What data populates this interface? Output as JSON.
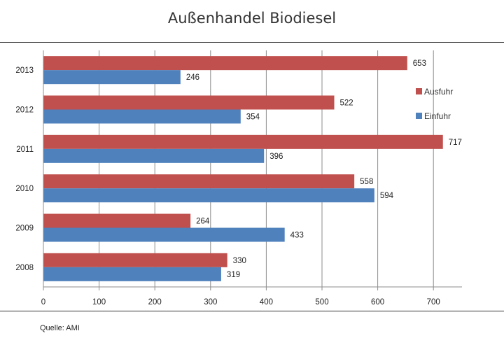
{
  "chart_data": {
    "type": "bar",
    "orientation": "horizontal",
    "title": "Außenhandel Biodiesel",
    "categories": [
      "2008",
      "2009",
      "2010",
      "2011",
      "2012",
      "2013"
    ],
    "series": [
      {
        "name": "Ausfuhr",
        "color": "#c0504d",
        "values": [
          330,
          264,
          558,
          717,
          522,
          653
        ]
      },
      {
        "name": "Einfuhr",
        "color": "#4f81bd",
        "values": [
          319,
          433,
          594,
          396,
          354,
          246
        ]
      }
    ],
    "x_ticks": [
      0,
      100,
      200,
      300,
      400,
      500,
      600,
      700
    ],
    "xlim": [
      0,
      750
    ],
    "grid": true,
    "legend": {
      "position": "right",
      "entries": [
        "Ausfuhr",
        "Einfuhr"
      ]
    },
    "xlabel": "",
    "ylabel": ""
  },
  "source": "Quelle: AMI"
}
